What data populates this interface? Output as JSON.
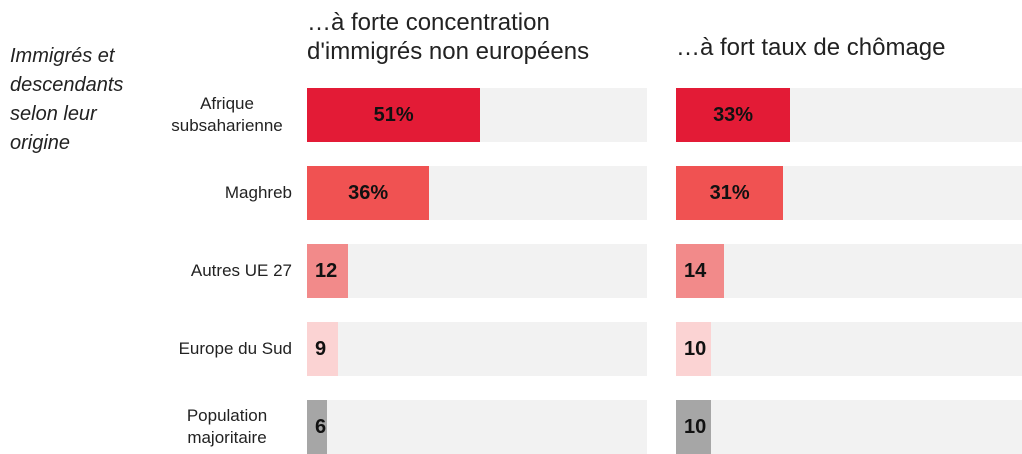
{
  "chart_data": [
    {
      "type": "bar",
      "orientation": "horizontal",
      "title": "…à forte concentration d'immigrés non européens",
      "y_label": "Immigrés et descendants selon leur origine",
      "categories": [
        "Afrique subsaharienne",
        "Maghreb",
        "Autres UE 27",
        "Europe du Sud",
        "Population majoritaire"
      ],
      "values": [
        51,
        36,
        12,
        9,
        6
      ],
      "value_labels": [
        "51%",
        "36%",
        "12",
        "9",
        "6"
      ],
      "colors": [
        "#e31b36",
        "#f05252",
        "#f28a8a",
        "#fbd3d3",
        "#a6a6a6"
      ],
      "xlim": [
        0,
        100
      ]
    },
    {
      "type": "bar",
      "orientation": "horizontal",
      "title": "…à fort taux de chômage",
      "values": [
        33,
        31,
        14,
        10,
        10
      ],
      "value_labels": [
        "33%",
        "31%",
        "14",
        "10",
        "10"
      ],
      "colors": [
        "#e31b36",
        "#f05252",
        "#f28a8a",
        "#fbd3d3",
        "#a6a6a6"
      ],
      "xlim": [
        0,
        100
      ]
    }
  ]
}
